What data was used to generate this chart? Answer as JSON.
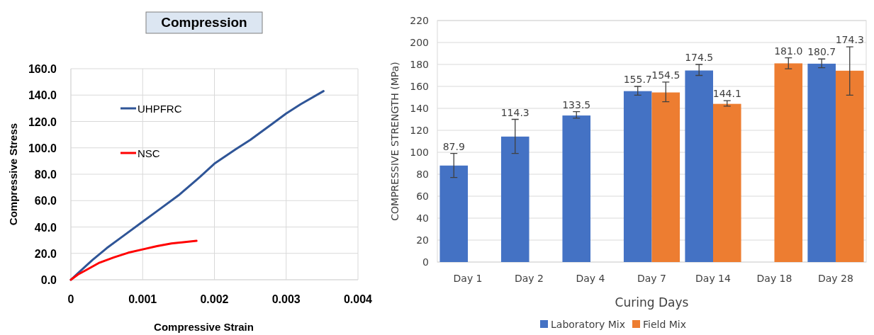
{
  "chart_data": [
    {
      "type": "line",
      "title": "Compression",
      "xlabel": "Compressive Strain",
      "ylabel": "Compressive Stress",
      "xlim": [
        0,
        0.004
      ],
      "xticks": [
        0,
        0.001,
        0.002,
        0.003,
        0.004
      ],
      "ylim": [
        0,
        160
      ],
      "yticks": [
        {
          "value": 0,
          "label": "0.0"
        },
        {
          "value": 20,
          "label": "20.0"
        },
        {
          "value": 40,
          "label": "40.0"
        },
        {
          "value": 60,
          "label": "60.0"
        },
        {
          "value": 80,
          "label": "80.0"
        },
        {
          "value": 100,
          "label": "100.0"
        },
        {
          "value": 120,
          "label": "120.0"
        },
        {
          "value": 140,
          "label": "140.0"
        },
        {
          "value": 160,
          "label": "160.0"
        }
      ],
      "grid": true,
      "legend": "top left",
      "marker": "none",
      "line_style": "solid",
      "series": [
        {
          "name": "UHPFRC",
          "color": "#2f5597",
          "x": [
            0,
            0.0001,
            0.0003,
            0.0005,
            0.0007,
            0.001,
            0.0012,
            0.0015,
            0.0018,
            0.002,
            0.0023,
            0.0025,
            0.0028,
            0.003,
            0.0032,
            0.00352
          ],
          "values": [
            0,
            5,
            15,
            24,
            32,
            44,
            52,
            64,
            78,
            88,
            99,
            106,
            118,
            126,
            133,
            143
          ]
        },
        {
          "name": "NSC",
          "color": "#ff0000",
          "x": [
            0,
            0.0001,
            0.0002,
            0.0004,
            0.0006,
            0.0008,
            0.001,
            0.0012,
            0.0014,
            0.00175
          ],
          "values": [
            0,
            4,
            7,
            13,
            17,
            20.5,
            23,
            25.5,
            27.5,
            29.5
          ]
        }
      ]
    },
    {
      "type": "bar",
      "xlabel": "Curing Days",
      "ylabel": "COMPRESSIVE STRENGTH (MPa)",
      "categories": [
        "Day 1",
        "Day 2",
        "Day 4",
        "Day 7",
        "Day 14",
        "Day 18",
        "Day 28"
      ],
      "ylim": [
        0,
        220
      ],
      "yticks": [
        0,
        20,
        40,
        60,
        80,
        100,
        120,
        140,
        160,
        180,
        200,
        220
      ],
      "grid": "y",
      "legend": "bottom",
      "series": [
        {
          "name": "Laboratory Mix",
          "color": "#4472c4",
          "values": [
            87.9,
            114.3,
            133.5,
            155.7,
            174.5,
            null,
            180.7
          ],
          "errors": [
            [
              77,
              99
            ],
            [
              99,
              130
            ],
            [
              131,
              137
            ],
            [
              152,
              160
            ],
            [
              170,
              180
            ],
            null,
            [
              177,
              185
            ]
          ],
          "value_labels": [
            "87.9",
            "114.3",
            "133.5",
            "155.7",
            "174.5",
            null,
            "180.7"
          ]
        },
        {
          "name": "Field Mix",
          "color": "#ed7d31",
          "values": [
            null,
            null,
            null,
            154.5,
            144.1,
            181.0,
            174.3
          ],
          "errors": [
            null,
            null,
            null,
            [
              146,
              164
            ],
            [
              142,
              147
            ],
            [
              176,
              186
            ],
            [
              152,
              196
            ]
          ],
          "value_labels": [
            null,
            null,
            null,
            "154.5",
            "144.1",
            "181.0",
            "174.3"
          ]
        }
      ]
    }
  ]
}
